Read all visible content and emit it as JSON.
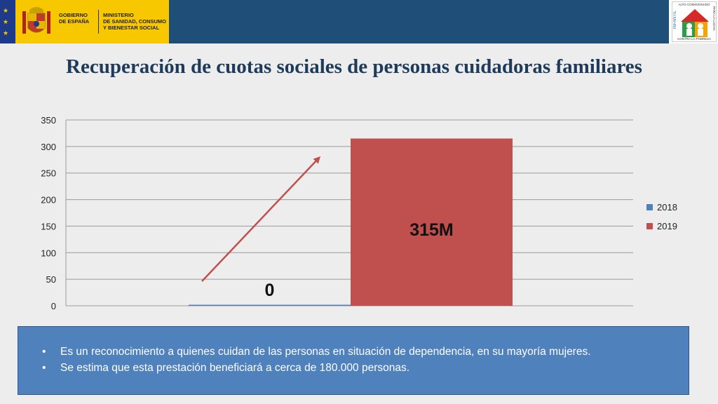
{
  "header": {
    "gov_line1": "GOBIERNO",
    "gov_line2": "DE ESPAÑA",
    "ministry_line1": "MINISTERIO",
    "ministry_line2": "DE SANIDAD, CONSUMO",
    "ministry_line3": "Y BIENESTAR SOCIAL",
    "eu_star": "★",
    "logo_top": "ALTO COMISIONADO",
    "logo_left": "INFANTIL",
    "logo_right": "PARA LA LUCHA",
    "logo_bottom": "CONTRA LA POBREZA"
  },
  "slide": {
    "title": "Recuperación de cuotas sociales de personas cuidadoras familiares"
  },
  "chart_data": {
    "type": "bar",
    "categories": [
      ""
    ],
    "series": [
      {
        "name": "2018",
        "values": [
          0
        ],
        "data_label": "0",
        "color": "#4f81bd"
      },
      {
        "name": "2019",
        "values": [
          315
        ],
        "data_label": "315M",
        "color": "#c0504d"
      }
    ],
    "ylim": [
      0,
      350
    ],
    "yticks": [
      "0",
      "50",
      "100",
      "150",
      "200",
      "250",
      "300",
      "350"
    ],
    "grid": true,
    "legend_position": "right",
    "annotation": "arrow"
  },
  "notes": {
    "bullet_symbol": "•",
    "items": [
      "Es un reconocimiento a quienes cuidan de las personas en situación de dependencia, en su mayoría mujeres.",
      "Se estima que esta prestación beneficiará a cerca de 180.000 personas."
    ]
  },
  "colors": {
    "header_blue": "#1f4e79",
    "gov_yellow": "#f7c800",
    "note_box": "#4f81bd",
    "title_text": "#1f3b5c"
  }
}
